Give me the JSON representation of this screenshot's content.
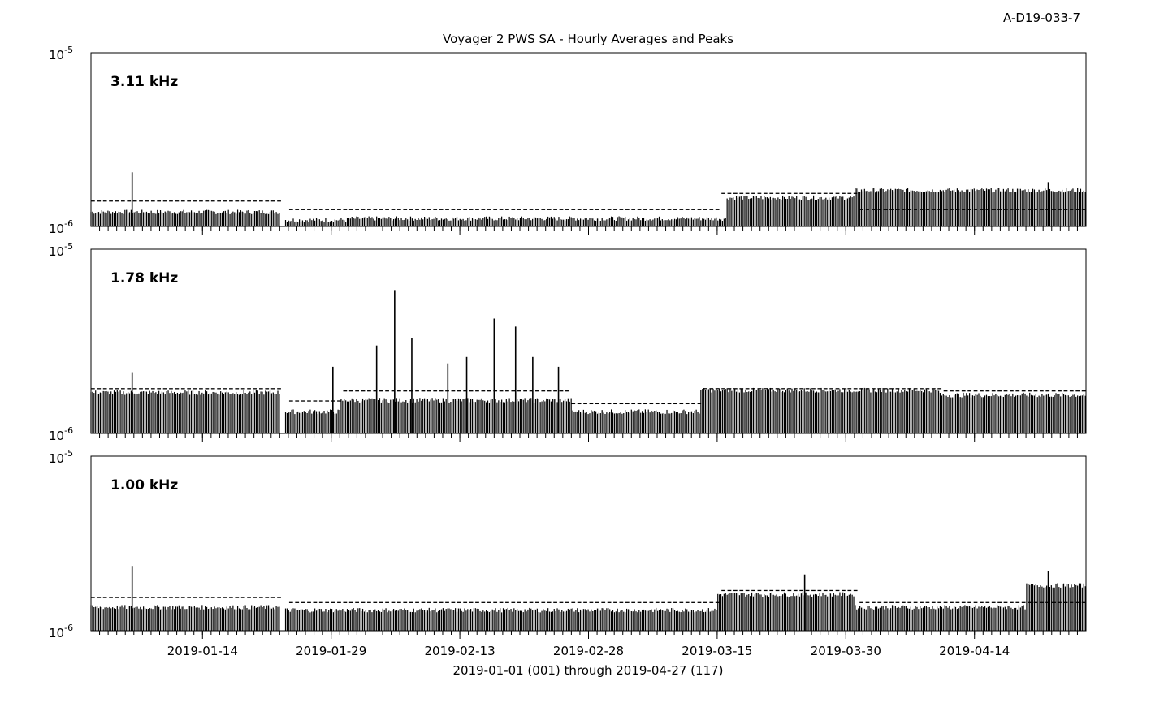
{
  "figure_id": "A-D19-033-7",
  "title": "Voyager 2 PWS SA - Hourly Averages and Peaks",
  "xlabel": "2019-01-01 (001) through 2019-04-27 (117)",
  "colors": {
    "background": "#ffffff",
    "ink": "#000000"
  },
  "chart_data": [
    {
      "type": "line",
      "title": "3.11 kHz",
      "yscale": "log",
      "ylim": [
        "10-6",
        "10-5"
      ],
      "ytick_labels": [
        {
          "base": "10",
          "exp": "-6"
        },
        {
          "base": "10",
          "exp": "-5"
        }
      ],
      "x_range_days": [
        1,
        117
      ],
      "x_tick_labels": [
        "2019-01-14",
        "2019-01-29",
        "2019-02-13",
        "2019-02-28",
        "2019-03-15",
        "2019-03-30",
        "2019-04-14"
      ],
      "x_tick_days": [
        14,
        29,
        44,
        59,
        74,
        89,
        104
      ],
      "baseline_level": 1.2e-06,
      "average_level": 1.4e-06,
      "spikes": [
        {
          "day": 5.8,
          "value": 2.05e-06
        },
        {
          "day": 112.6,
          "value": 1.8e-06
        }
      ],
      "series": [
        {
          "name": "Hourly peaks",
          "segments": [
            {
              "days": [
                1,
                23
              ],
              "level": 1.2e-06
            },
            {
              "days": [
                23.5,
                31
              ],
              "level": 1.08e-06
            },
            {
              "days": [
                31,
                56
              ],
              "level": 1.1e-06
            },
            {
              "days": [
                56,
                75
              ],
              "level": 1.1e-06
            },
            {
              "days": [
                75,
                90
              ],
              "level": 1.45e-06
            },
            {
              "days": [
                90,
                117
              ],
              "level": 1.6e-06
            }
          ]
        },
        {
          "name": "Hourly averages",
          "segments": [
            {
              "days": [
                1,
                23
              ],
              "level": 1.4e-06
            },
            {
              "days": [
                23.5,
                60
              ],
              "level": 1.25e-06
            },
            {
              "days": [
                60,
                74
              ],
              "level": 1.25e-06
            },
            {
              "days": [
                74,
                90
              ],
              "level": 1.55e-06
            },
            {
              "days": [
                90,
                117
              ],
              "level": 1.25e-06
            }
          ]
        }
      ]
    },
    {
      "type": "line",
      "title": "1.78 kHz",
      "yscale": "log",
      "ylim": [
        "10-6",
        "10-5"
      ],
      "ytick_labels": [
        {
          "base": "10",
          "exp": "-6"
        },
        {
          "base": "10",
          "exp": "-5"
        }
      ],
      "x_range_days": [
        1,
        117
      ],
      "x_tick_labels": [
        "2019-01-14",
        "2019-01-29",
        "2019-02-13",
        "2019-02-28",
        "2019-03-15",
        "2019-03-30",
        "2019-04-14"
      ],
      "x_tick_days": [
        14,
        29,
        44,
        59,
        74,
        89,
        104
      ],
      "baseline_level": 1.65e-06,
      "average_level": 1.75e-06,
      "spikes": [
        {
          "day": 5.8,
          "value": 2.15e-06
        },
        {
          "day": 29.2,
          "value": 2.3e-06
        },
        {
          "day": 34.3,
          "value": 3e-06
        },
        {
          "day": 36.4,
          "value": 6e-06
        },
        {
          "day": 38.4,
          "value": 3.3e-06
        },
        {
          "day": 42.6,
          "value": 2.4e-06
        },
        {
          "day": 44.8,
          "value": 2.6e-06
        },
        {
          "day": 48.0,
          "value": 4.2e-06
        },
        {
          "day": 50.5,
          "value": 3.8e-06
        },
        {
          "day": 52.5,
          "value": 2.6e-06
        },
        {
          "day": 55.5,
          "value": 2.3e-06
        }
      ],
      "series": [
        {
          "name": "Hourly peaks",
          "segments": [
            {
              "days": [
                1,
                23
              ],
              "level": 1.65e-06
            },
            {
              "days": [
                23.5,
                30
              ],
              "level": 1.3e-06
            },
            {
              "days": [
                30,
                57
              ],
              "level": 1.5e-06
            },
            {
              "days": [
                57,
                72
              ],
              "level": 1.3e-06
            },
            {
              "days": [
                72,
                100
              ],
              "level": 1.7e-06
            },
            {
              "days": [
                100,
                117
              ],
              "level": 1.6e-06
            }
          ]
        },
        {
          "name": "Hourly averages",
          "segments": [
            {
              "days": [
                1,
                23
              ],
              "level": 1.75e-06
            },
            {
              "days": [
                23.5,
                30
              ],
              "level": 1.5e-06
            },
            {
              "days": [
                30,
                57
              ],
              "level": 1.7e-06
            },
            {
              "days": [
                57,
                72
              ],
              "level": 1.45e-06
            },
            {
              "days": [
                72,
                100
              ],
              "level": 1.75e-06
            },
            {
              "days": [
                100,
                117
              ],
              "level": 1.7e-06
            }
          ]
        }
      ]
    },
    {
      "type": "line",
      "title": "1.00 kHz",
      "yscale": "log",
      "ylim": [
        "10-6",
        "10-5"
      ],
      "ytick_labels": [
        {
          "base": "10",
          "exp": "-6"
        },
        {
          "base": "10",
          "exp": "-5"
        }
      ],
      "x_range_days": [
        1,
        117
      ],
      "x_tick_labels": [
        "2019-01-14",
        "2019-01-29",
        "2019-02-13",
        "2019-02-28",
        "2019-03-15",
        "2019-03-30",
        "2019-04-14"
      ],
      "x_tick_days": [
        14,
        29,
        44,
        59,
        74,
        89,
        104
      ],
      "baseline_level": 1.3e-06,
      "average_level": 1.45e-06,
      "spikes": [
        {
          "day": 5.8,
          "value": 2.35e-06
        },
        {
          "day": 84.2,
          "value": 2.1e-06
        },
        {
          "day": 112.6,
          "value": 2.2e-06
        }
      ],
      "series": [
        {
          "name": "Hourly peaks",
          "segments": [
            {
              "days": [
                1,
                23
              ],
              "level": 1.35e-06
            },
            {
              "days": [
                23.5,
                74
              ],
              "level": 1.3e-06
            },
            {
              "days": [
                74,
                90
              ],
              "level": 1.6e-06
            },
            {
              "days": [
                90,
                110
              ],
              "level": 1.35e-06
            },
            {
              "days": [
                110,
                117
              ],
              "level": 1.8e-06
            }
          ]
        },
        {
          "name": "Hourly averages",
          "segments": [
            {
              "days": [
                1,
                23
              ],
              "level": 1.55e-06
            },
            {
              "days": [
                23.5,
                74
              ],
              "level": 1.45e-06
            },
            {
              "days": [
                74,
                90
              ],
              "level": 1.7e-06
            },
            {
              "days": [
                90,
                117
              ],
              "level": 1.45e-06
            }
          ]
        }
      ]
    }
  ]
}
